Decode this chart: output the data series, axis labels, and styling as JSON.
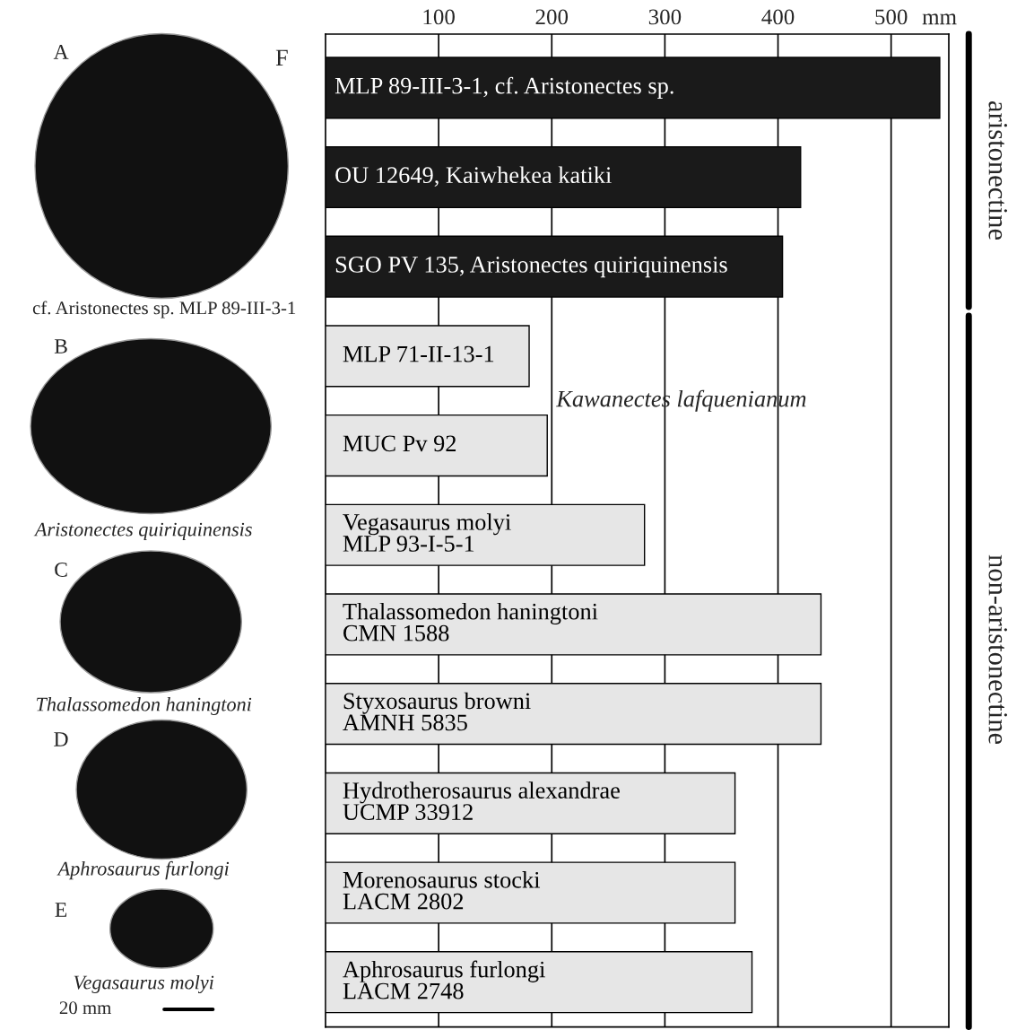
{
  "chart_data": [
    {
      "type": "other",
      "annotations": [
        "A",
        "cf. Aristonectes sp. MLP 89-III-3-1",
        "B",
        "Aristonectes quiriquinensis",
        "C",
        "Thalassomedon haningtoni",
        "D",
        "Aphrosaurus furlongi",
        "E",
        "Vegasaurus molyi",
        "20 mm"
      ]
    },
    {
      "type": "bar",
      "orientation": "horizontal",
      "categories": [
        "MLP 89-III-3-1, cf. Aristonectes sp.",
        "OU 12649, Kaiwhekea katiki",
        "SGO PV 135, Aristonectes quiriquinensis",
        "MLP 71-II-13-1",
        "MUC Pv 92",
        "Vegasaurus molyi\nMLP 93-I-5-1",
        "Thalassomedon haningtoni\nCMN 1588",
        "Styxosaurus browni\nAMNH 5835",
        "Hydrotherosaurus alexandrae\nUCMP 33912",
        "Morenosaurus stocki\nLACM 2802",
        "Aphrosaurus furlongi\nLACM 2748"
      ],
      "values": [
        543,
        420,
        404,
        180,
        196,
        282,
        438,
        438,
        362,
        362,
        377
      ],
      "colors": [
        "#1a1a1a",
        "#1a1a1a",
        "#1a1a1a",
        "#e6e6e6",
        "#e6e6e6",
        "#e6e6e6",
        "#e6e6e6",
        "#e6e6e6",
        "#e6e6e6",
        "#e6e6e6",
        "#e6e6e6"
      ],
      "xlabel": "mm",
      "xlim": [
        0,
        551
      ],
      "xticks": [
        100,
        200,
        300,
        400,
        500
      ],
      "grid": "x",
      "annotations": [
        "F",
        "Kawanectes lafquenianum",
        "aristonectine",
        "non-aristonectine"
      ]
    }
  ]
}
